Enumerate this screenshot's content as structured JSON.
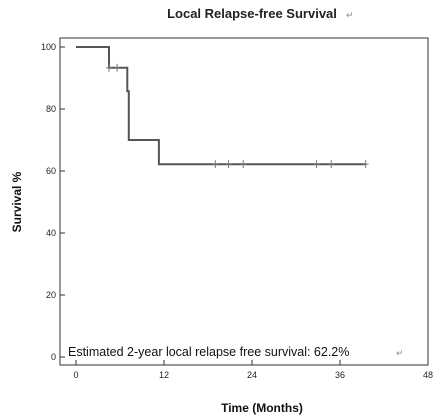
{
  "chart_data": {
    "type": "line",
    "title": "Local Relapse-free Survival",
    "xlabel": "Time (Months)",
    "ylabel": "Survival %",
    "xlim": [
      0,
      48
    ],
    "ylim": [
      0,
      100
    ],
    "x_ticks": [
      0,
      12,
      24,
      36,
      48
    ],
    "y_ticks": [
      0,
      20,
      40,
      60,
      80,
      100
    ],
    "grid": false,
    "series": [
      {
        "step_points": [
          [
            0,
            100
          ],
          [
            4.5,
            100
          ],
          [
            4.5,
            93.3
          ],
          [
            7.0,
            93.3
          ],
          [
            7.0,
            85.7
          ],
          [
            7.2,
            85.7
          ],
          [
            7.2,
            70.0
          ],
          [
            11.3,
            70.0
          ],
          [
            11.3,
            62.2
          ],
          [
            39.5,
            62.2
          ]
        ],
        "censored": [
          [
            4.5,
            93.3
          ],
          [
            5.6,
            93.3
          ],
          [
            19.0,
            62.2
          ],
          [
            20.8,
            62.2
          ],
          [
            22.8,
            62.2
          ],
          [
            32.8,
            62.2
          ],
          [
            34.8,
            62.2
          ],
          [
            39.5,
            62.2
          ]
        ],
        "color": "#555555"
      }
    ],
    "annotations": [
      {
        "text": "Estimated 2-year local relapse free survival: 62.2%"
      }
    ]
  },
  "glyphs": {
    "return_mark": "↵"
  }
}
